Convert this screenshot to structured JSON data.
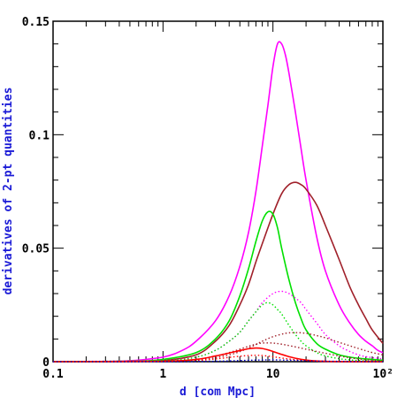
{
  "chart_data": {
    "type": "line",
    "xlabel": "d [com Mpc]",
    "ylabel": "derivatives of 2-pt quantities",
    "xscale": "log",
    "xlim": [
      0.1,
      100
    ],
    "ylim": [
      0,
      0.15
    ],
    "grid": false,
    "legend": "none",
    "x_ticks": [
      {
        "value": 0.1,
        "label": "0.1"
      },
      {
        "value": 1,
        "label": "1"
      },
      {
        "value": 10,
        "label": "10"
      },
      {
        "value": 100,
        "label": "10²"
      }
    ],
    "y_ticks": [
      {
        "value": 0,
        "label": "0"
      },
      {
        "value": 0.05,
        "label": "0.05"
      },
      {
        "value": 0.1,
        "label": "0.1"
      },
      {
        "value": 0.15,
        "label": "0.15"
      }
    ],
    "series": [
      {
        "color": "#ff00ff",
        "style": "solid",
        "x": [
          0.1,
          0.3,
          0.5,
          1,
          1.5,
          2,
          3,
          4,
          5,
          6,
          7,
          8,
          9,
          10,
          11,
          12,
          13,
          14,
          16,
          18,
          20,
          25,
          30,
          40,
          50,
          60,
          70,
          80,
          90,
          100
        ],
        "y": [
          0,
          0.0001,
          0.0004,
          0.002,
          0.005,
          0.009,
          0.018,
          0.029,
          0.042,
          0.057,
          0.075,
          0.095,
          0.113,
          0.13,
          0.14,
          0.14,
          0.135,
          0.127,
          0.11,
          0.094,
          0.08,
          0.055,
          0.04,
          0.025,
          0.017,
          0.012,
          0.009,
          0.007,
          0.005,
          0.004
        ]
      },
      {
        "color": "#a0202a",
        "style": "solid",
        "x": [
          0.1,
          0.5,
          1,
          2,
          3,
          4,
          5,
          6,
          7,
          8,
          10,
          12,
          14,
          16,
          18,
          20,
          25,
          30,
          40,
          50,
          60,
          70,
          80,
          100
        ],
        "y": [
          0,
          0.0001,
          0.0005,
          0.003,
          0.009,
          0.016,
          0.025,
          0.034,
          0.044,
          0.052,
          0.065,
          0.074,
          0.078,
          0.079,
          0.078,
          0.076,
          0.069,
          0.06,
          0.045,
          0.033,
          0.025,
          0.019,
          0.014,
          0.008
        ]
      },
      {
        "color": "#00e000",
        "style": "solid",
        "x": [
          0.1,
          0.5,
          1,
          2,
          3,
          4,
          5,
          6,
          7,
          8,
          9,
          10,
          11,
          12,
          14,
          16,
          18,
          20,
          25,
          30,
          40,
          50,
          60,
          70,
          80,
          90,
          100
        ],
        "y": [
          0,
          0.0002,
          0.001,
          0.004,
          0.01,
          0.018,
          0.029,
          0.041,
          0.053,
          0.062,
          0.066,
          0.065,
          0.059,
          0.05,
          0.036,
          0.026,
          0.019,
          0.014,
          0.008,
          0.0055,
          0.003,
          0.002,
          0.0015,
          0.0012,
          0.001,
          0.0008,
          0.0006
        ]
      },
      {
        "color": "#ff00ff",
        "style": "dotted",
        "x": [
          0.1,
          1,
          2,
          3,
          4,
          5,
          6,
          7,
          8,
          10,
          12,
          14,
          16,
          18,
          20,
          25,
          30,
          40,
          50,
          60,
          70,
          80,
          100
        ],
        "y": [
          0,
          0.0006,
          0.002,
          0.005,
          0.009,
          0.013,
          0.018,
          0.022,
          0.026,
          0.03,
          0.031,
          0.03,
          0.028,
          0.026,
          0.023,
          0.017,
          0.012,
          0.007,
          0.0045,
          0.003,
          0.0022,
          0.0018,
          0.0012
        ]
      },
      {
        "color": "#00e000",
        "style": "dotted",
        "x": [
          0.1,
          1,
          2,
          3,
          4,
          5,
          6,
          7,
          8,
          9,
          10,
          11,
          12,
          14,
          16,
          18,
          20,
          25,
          30,
          40,
          50,
          60,
          80,
          100
        ],
        "y": [
          0,
          0.0005,
          0.002,
          0.005,
          0.009,
          0.013,
          0.018,
          0.022,
          0.025,
          0.026,
          0.025,
          0.023,
          0.021,
          0.016,
          0.012,
          0.009,
          0.007,
          0.004,
          0.0025,
          0.0013,
          0.0008,
          0.0005,
          0.0003,
          0.0002
        ]
      },
      {
        "color": "#a0202a",
        "style": "dotted",
        "x": [
          0.1,
          1,
          2,
          4,
          6,
          8,
          10,
          13,
          16,
          20,
          25,
          30,
          40,
          50,
          60,
          70,
          80,
          100
        ],
        "y": [
          0,
          0.0001,
          0.0006,
          0.003,
          0.006,
          0.009,
          0.011,
          0.0125,
          0.0128,
          0.0125,
          0.0115,
          0.0105,
          0.0085,
          0.007,
          0.0058,
          0.0048,
          0.004,
          0.003
        ]
      },
      {
        "color": "#a0202a",
        "style": "dotted",
        "x": [
          0.1,
          1,
          2,
          3,
          4,
          5,
          6,
          7,
          8,
          10,
          12,
          15,
          20,
          25,
          30,
          40,
          50,
          60,
          80,
          100
        ],
        "y": [
          0,
          0.0002,
          0.001,
          0.0025,
          0.004,
          0.0055,
          0.0068,
          0.0077,
          0.0082,
          0.0082,
          0.0077,
          0.0068,
          0.0055,
          0.0045,
          0.0037,
          0.0025,
          0.0017,
          0.0012,
          0.0006,
          0.0003
        ]
      },
      {
        "color": "#ff0000",
        "style": "solid",
        "x": [
          0.1,
          1,
          2,
          3,
          4,
          5,
          6,
          7,
          8,
          9,
          10,
          12,
          14,
          16,
          20,
          25,
          30,
          40,
          50,
          100
        ],
        "y": [
          0,
          0.0002,
          0.001,
          0.0025,
          0.0038,
          0.0049,
          0.0057,
          0.006,
          0.0058,
          0.0052,
          0.0045,
          0.0032,
          0.0022,
          0.0015,
          0.0007,
          0.0003,
          0.00015,
          5e-05,
          0,
          0
        ]
      },
      {
        "color": "#ff0000",
        "style": "dotted",
        "x": [
          0.1,
          1,
          2,
          3,
          4,
          5,
          6,
          7,
          8,
          10,
          12,
          15,
          20,
          30,
          50,
          100
        ],
        "y": [
          0,
          0.0001,
          0.0005,
          0.0012,
          0.0019,
          0.0024,
          0.0027,
          0.0028,
          0.0027,
          0.0022,
          0.0016,
          0.001,
          0.0005,
          0.00015,
          0,
          0
        ]
      },
      {
        "color": "#0000cc",
        "style": "dotted",
        "x": [
          0.1,
          1,
          3,
          5,
          7,
          10,
          15,
          20,
          30,
          50,
          100
        ],
        "y": [
          0,
          0,
          0.0002,
          0.0005,
          0.0007,
          0.0008,
          0.0006,
          0.0004,
          0.0002,
          0.0001,
          0
        ]
      }
    ]
  }
}
